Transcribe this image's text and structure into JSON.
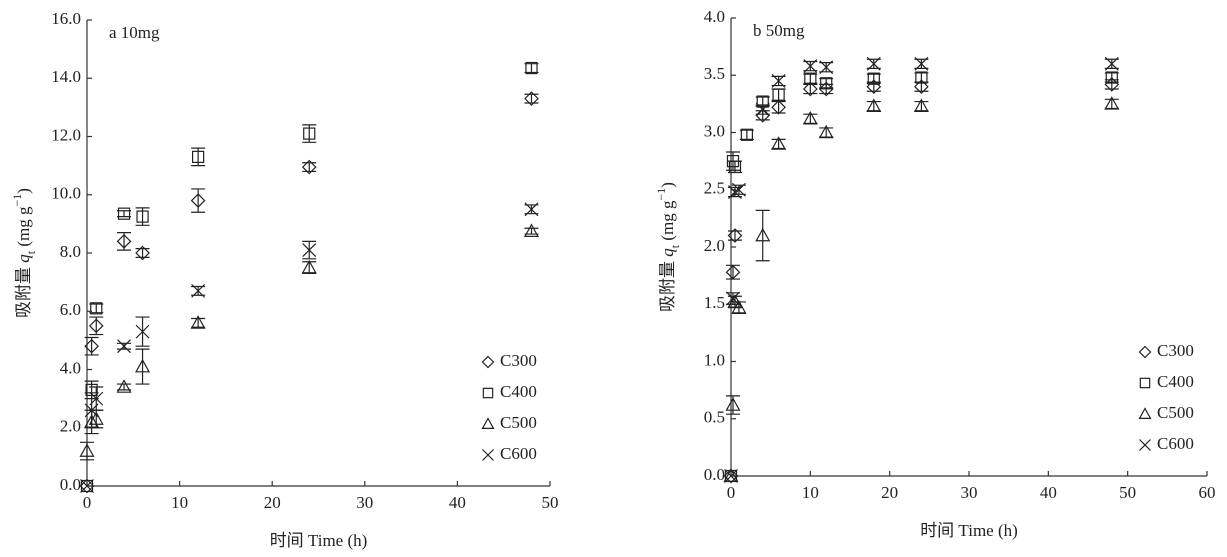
{
  "chart_data": [
    {
      "type": "scatter",
      "title": "a  10mg",
      "xlabel": "时间 Time (h)",
      "ylabel": [
        "吸附量 ",
        "q",
        "t",
        " (mg g",
        "−1",
        ")"
      ],
      "xlim": [
        0,
        50
      ],
      "ylim": [
        0,
        16
      ],
      "xticks": [
        0,
        10,
        20,
        30,
        40,
        50
      ],
      "yticks": [
        {
          "value": 0,
          "label": "0.0"
        },
        {
          "value": 2,
          "label": "2.0"
        },
        {
          "value": 4,
          "label": "4.0"
        },
        {
          "value": 6,
          "label": "6.0"
        },
        {
          "value": 8,
          "label": "8.0"
        },
        {
          "value": 10,
          "label": "10.0"
        },
        {
          "value": 12,
          "label": "12.0"
        },
        {
          "value": 14,
          "label": "14.0"
        },
        {
          "value": 16,
          "label": "16.0"
        }
      ],
      "x": [
        0,
        0.5,
        1,
        4,
        6,
        12,
        24,
        48
      ],
      "legend": "lower right",
      "series": [
        {
          "name": "C300",
          "marker": "diamond",
          "color": "#222222",
          "values": [
            0,
            4.8,
            5.5,
            8.4,
            8.0,
            9.8,
            10.95,
            13.3
          ],
          "errors": [
            0,
            0.3,
            0.3,
            0.3,
            0.15,
            0.4,
            0.15,
            0.15
          ]
        },
        {
          "name": "C400",
          "marker": "square",
          "color": "#222222",
          "values": [
            0,
            3.3,
            6.1,
            9.35,
            9.25,
            11.3,
            12.1,
            14.35
          ],
          "errors": [
            0,
            0.3,
            0.15,
            0.1,
            0.3,
            0.3,
            0.3,
            0.15
          ]
        },
        {
          "name": "C500",
          "marker": "triangle",
          "color": "#222222",
          "values": [
            1.2,
            2.2,
            2.3,
            3.4,
            4.1,
            5.6,
            7.5,
            8.75
          ],
          "errors": [
            0.3,
            0.4,
            0.3,
            0.1,
            0.6,
            0.15,
            0.2,
            0.1
          ]
        },
        {
          "name": "C600",
          "marker": "cross",
          "color": "#222222",
          "values": [
            0,
            2.6,
            3.0,
            4.8,
            5.3,
            6.7,
            8.1,
            9.5
          ],
          "errors": [
            0,
            0.6,
            0.4,
            0.1,
            0.5,
            0.15,
            0.3,
            0.15
          ]
        }
      ]
    },
    {
      "type": "scatter",
      "title": "b  50mg",
      "xlabel": "时间 Time (h)",
      "ylabel": [
        "吸附量 ",
        "q",
        "t",
        " (mg g",
        "−1",
        ")"
      ],
      "xlim": [
        0,
        60
      ],
      "ylim": [
        0,
        4
      ],
      "xticks": [
        0,
        10,
        20,
        30,
        40,
        50,
        60
      ],
      "yticks": [
        {
          "value": 0,
          "label": "0.0"
        },
        0.5,
        {
          "value": 1,
          "label": "1.0"
        },
        1.5,
        {
          "value": 2,
          "label": "2.0"
        },
        2.5,
        {
          "value": 3,
          "label": "3.0"
        },
        3.5,
        {
          "value": 4,
          "label": "4.0"
        }
      ],
      "x": [
        0,
        0.25,
        0.5,
        1,
        2,
        4,
        6,
        10,
        12,
        18,
        24,
        48
      ],
      "legend": "lower right",
      "series": [
        {
          "name": "C300",
          "marker": "diamond",
          "color": "#222222",
          "values": [
            0,
            1.78,
            2.1,
            null,
            null,
            3.15,
            3.22,
            3.38,
            3.38,
            3.4,
            3.4,
            3.42
          ],
          "errors": [
            0,
            0.06,
            0.04,
            null,
            null,
            0.04,
            0.05,
            0.04,
            0.04,
            0.04,
            0.04,
            0.04
          ]
        },
        {
          "name": "C400",
          "marker": "square",
          "color": "#222222",
          "values": [
            0,
            2.75,
            2.7,
            null,
            2.98,
            3.27,
            3.33,
            3.47,
            3.43,
            3.47,
            3.48,
            3.48
          ],
          "errors": [
            0,
            0.08,
            0.05,
            null,
            0.04,
            0.04,
            0.05,
            0.04,
            0.04,
            0.04,
            0.04,
            0.04
          ]
        },
        {
          "name": "C500",
          "marker": "triangle",
          "color": "#222222",
          "values": [
            0,
            0.62,
            1.52,
            1.47,
            null,
            2.1,
            2.9,
            3.12,
            3.0,
            3.23,
            3.23,
            3.25
          ],
          "errors": [
            0,
            0.08,
            0.05,
            0.05,
            null,
            0.22,
            0.04,
            0.04,
            0.04,
            0.04,
            0.04,
            0.04
          ]
        },
        {
          "name": "C600",
          "marker": "cross",
          "color": "#222222",
          "values": [
            0,
            1.55,
            2.48,
            2.5,
            null,
            3.2,
            3.45,
            3.58,
            3.57,
            3.6,
            3.6,
            3.6
          ],
          "errors": [
            0,
            0.05,
            0.04,
            0.04,
            null,
            0.04,
            0.04,
            0.04,
            0.04,
            0.04,
            0.04,
            0.04
          ]
        }
      ]
    }
  ]
}
